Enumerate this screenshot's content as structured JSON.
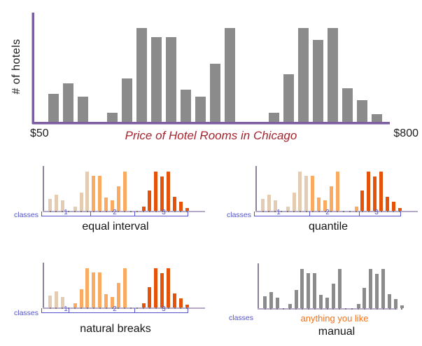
{
  "colors": {
    "bar_gray": "#8b8b8b",
    "main_axis_purple": "#7b5da0",
    "small_axis_gray": "#8b8295",
    "small_baseline_purple": "#b5a8c9",
    "classes_blue": "#5353cd",
    "class1_tan": "#e4ccb3",
    "class2_orange": "#fbaa61",
    "class3_dark_orange": "#e5530a",
    "title_red": "#a6232e",
    "manual_note_orange": "#f3721c"
  },
  "main_chart": {
    "ylabel": "# of hotels",
    "x_min_label": "$50",
    "x_max_label": "$800",
    "title": "Price of Hotel Rooms in Chicago"
  },
  "chart_data": {
    "type": "bar",
    "title": "Price of Hotel Rooms in Chicago",
    "ylabel": "# of hotels",
    "x_axis_range_labels": [
      "$50",
      "$800"
    ],
    "values_relative_pct": [
      30,
      41,
      27,
      10,
      46,
      100,
      90,
      90,
      34,
      27,
      62,
      100,
      10,
      51,
      100,
      87,
      100,
      36,
      23,
      8
    ],
    "slots": [
      0,
      1,
      2,
      4,
      5,
      6,
      7,
      8,
      9,
      10,
      11,
      12,
      15,
      16,
      17,
      18,
      19,
      20,
      21,
      22
    ],
    "gridlines": false,
    "legend": false
  },
  "small_charts": [
    {
      "key": "equal-interval",
      "title": "equal interval",
      "classes_label": "classes",
      "numbers": [
        "1",
        "2",
        "3"
      ],
      "class_of_bar": [
        1,
        1,
        1,
        1,
        1,
        1,
        2,
        2,
        2,
        2,
        2,
        2,
        3,
        3,
        3,
        3,
        3,
        3,
        3,
        3
      ],
      "dividers_after_bar": [
        6,
        12
      ],
      "has_bracket": true
    },
    {
      "key": "quantile",
      "title": "quantile",
      "classes_label": "classes",
      "numbers": [
        "1",
        "2",
        "3"
      ],
      "class_of_bar": [
        1,
        1,
        1,
        1,
        1,
        1,
        1,
        2,
        2,
        2,
        2,
        2,
        2,
        3,
        3,
        3,
        3,
        3,
        3,
        3
      ],
      "dividers_after_bar": [
        7,
        13
      ],
      "has_bracket": true
    },
    {
      "key": "natural-breaks",
      "title": "natural breaks",
      "classes_label": "classes",
      "numbers": [
        "1",
        "2",
        "3"
      ],
      "class_of_bar": [
        1,
        1,
        1,
        2,
        2,
        2,
        2,
        2,
        2,
        2,
        2,
        2,
        3,
        3,
        3,
        3,
        3,
        3,
        3,
        3
      ],
      "dividers_after_bar": [
        3,
        12
      ],
      "has_bracket": true
    },
    {
      "key": "manual",
      "title": "manual",
      "classes_label": "classes",
      "note": "anything you like",
      "class_of_bar": [
        0,
        0,
        0,
        0,
        0,
        0,
        0,
        0,
        0,
        0,
        0,
        0,
        0,
        0,
        0,
        0,
        0,
        0,
        0,
        0
      ],
      "dividers_after_bar": [],
      "has_bracket": false
    }
  ]
}
